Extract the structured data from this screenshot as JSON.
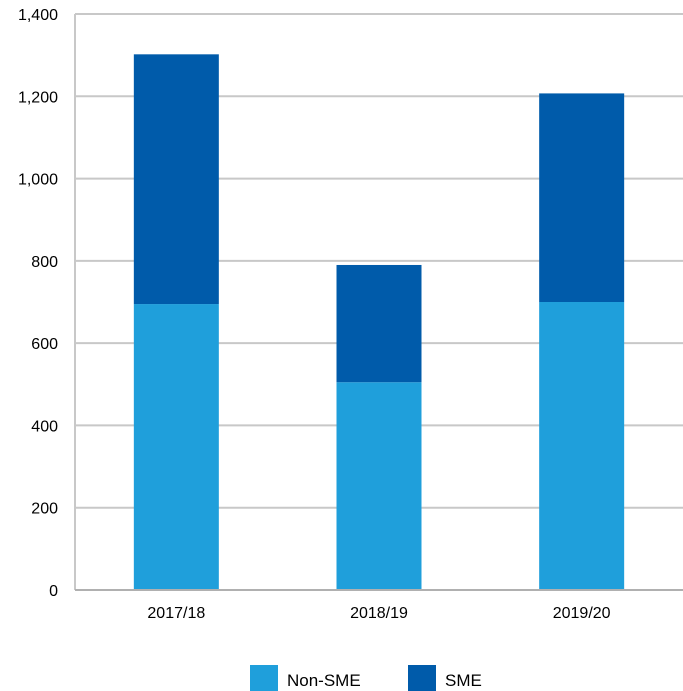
{
  "chart_data": {
    "type": "bar",
    "stacked": true,
    "categories": [
      "2017/18",
      "2018/19",
      "2019/20"
    ],
    "series": [
      {
        "name": "Non-SME",
        "values": [
          695,
          505,
          700
        ],
        "color": "#1f9fdb"
      },
      {
        "name": "SME",
        "values": [
          607,
          285,
          507
        ],
        "color": "#005baa"
      }
    ],
    "ylim": [
      0,
      1400
    ],
    "yticks": [
      0,
      200,
      400,
      600,
      800,
      1000,
      1200,
      1400
    ],
    "ytick_labels": [
      "0",
      "200",
      "400",
      "600",
      "800",
      "1,000",
      "1,200",
      "1,400"
    ],
    "grid": true,
    "legend": "bottom-center",
    "title": "",
    "xlabel": "",
    "ylabel": ""
  }
}
